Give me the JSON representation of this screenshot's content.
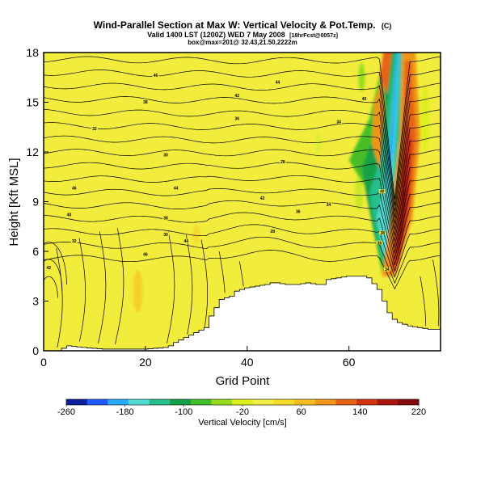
{
  "chart_data": {
    "type": "heatmap",
    "title": "Wind-Parallel Section at Max W: Vertical Velocity & Pot.Temp.",
    "title_mark": "(C)",
    "subtitle_line1": "Valid 1400 LST (1200Z) WED 7 May 2008",
    "subtitle_line1_tag": "[18hrFcst@0057z]",
    "subtitle_line2": "box@max=201@ 32.43,21.50,2222m",
    "xlabel": "Grid Point",
    "ylabel": "Height [Kft MSL]",
    "xlim": [
      0,
      78
    ],
    "ylim": [
      0,
      18
    ],
    "x_ticks": [
      0,
      20,
      40,
      60
    ],
    "y_ticks": [
      0,
      3,
      6,
      9,
      12,
      15,
      18
    ],
    "grid": false,
    "colorbar": {
      "label": "Vertical Velocity [cm/s]",
      "range": [
        -260,
        220
      ],
      "tick_labels": [
        -260,
        -180,
        -100,
        -20,
        60,
        140,
        220
      ],
      "colors": [
        "#0a1e9e",
        "#1e5aff",
        "#28aaff",
        "#50dcd2",
        "#28be8c",
        "#14a046",
        "#46be28",
        "#96dc1e",
        "#dcf01e",
        "#f0f046",
        "#f5dc28",
        "#f5be1e",
        "#f09619",
        "#e66414",
        "#d2320f",
        "#aa140f",
        "#820a0a"
      ]
    },
    "background_field": {
      "name": "Vertical Velocity",
      "units": "cm/s",
      "dominant_value": 40,
      "updraft": {
        "x_center_at_6kft": 68,
        "peak": 220
      },
      "downdraft": {
        "x_center_at_6kft": 66,
        "peak": -200
      }
    },
    "contour_field": {
      "name": "Potential Temperature",
      "contour_label_values": [
        46,
        44,
        42,
        40,
        38,
        36,
        34,
        32,
        30,
        28
      ]
    },
    "terrain": {
      "description": "mask of terrain below ground",
      "x": [
        0,
        2,
        3,
        5,
        8,
        12,
        16,
        20,
        24,
        25,
        26,
        28,
        30,
        32,
        33,
        34,
        35,
        37,
        38,
        40,
        42,
        44,
        45,
        46,
        48,
        50,
        52,
        54,
        55,
        56,
        58,
        60,
        62,
        63,
        64,
        66,
        67,
        68,
        69,
        70,
        71,
        72,
        74,
        76,
        78
      ],
      "y": [
        0.0,
        0.0,
        0.0,
        0.3,
        0.2,
        0.1,
        0.1,
        0.1,
        0.2,
        0.3,
        0.5,
        0.8,
        1.1,
        1.4,
        2.1,
        2.6,
        3.1,
        3.3,
        3.6,
        3.8,
        3.9,
        4.0,
        4.1,
        4.1,
        4.0,
        4.0,
        4.1,
        4.0,
        4.0,
        4.3,
        4.4,
        4.5,
        4.5,
        4.5,
        4.4,
        3.7,
        3.0,
        2.3,
        1.9,
        1.7,
        1.6,
        1.5,
        1.4,
        1.3,
        1.3
      ]
    }
  }
}
